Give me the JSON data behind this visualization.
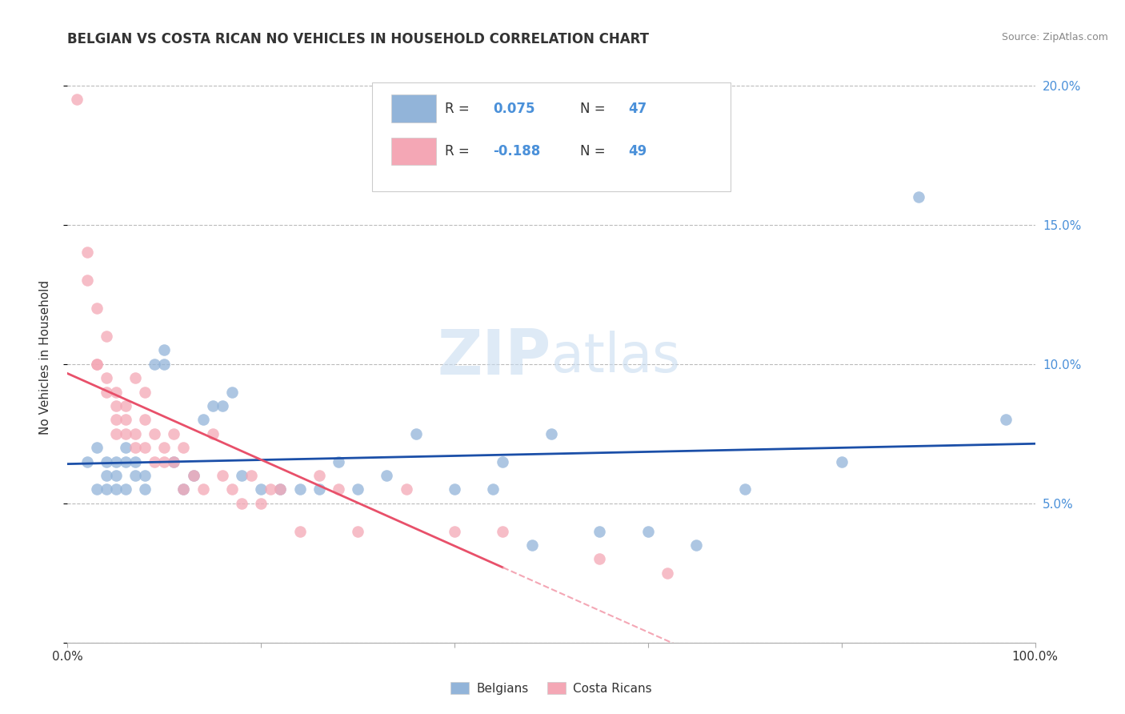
{
  "title": "BELGIAN VS COSTA RICAN NO VEHICLES IN HOUSEHOLD CORRELATION CHART",
  "source": "Source: ZipAtlas.com",
  "ylabel": "No Vehicles in Household",
  "xlim": [
    0,
    1.0
  ],
  "ylim": [
    0,
    0.21
  ],
  "yticks": [
    0.0,
    0.05,
    0.1,
    0.15,
    0.2
  ],
  "ytick_labels": [
    "",
    "5.0%",
    "10.0%",
    "15.0%",
    "20.0%"
  ],
  "legend_r_belgian": "R =  0.075",
  "legend_n_belgian": "N = 47",
  "legend_r_costarican": "R = -0.188",
  "legend_n_costarican": "N = 49",
  "belgian_color": "#92B4D9",
  "costarican_color": "#F4A7B5",
  "belgian_line_color": "#1B4FA8",
  "costarican_line_color": "#E8506A",
  "costarican_dash_color": "#F4A7B5",
  "watermark_zip": "ZIP",
  "watermark_atlas": "atlas",
  "belgian_x": [
    0.02,
    0.03,
    0.03,
    0.04,
    0.04,
    0.04,
    0.05,
    0.05,
    0.05,
    0.06,
    0.06,
    0.06,
    0.07,
    0.07,
    0.08,
    0.08,
    0.09,
    0.1,
    0.1,
    0.11,
    0.12,
    0.13,
    0.14,
    0.15,
    0.16,
    0.17,
    0.18,
    0.2,
    0.22,
    0.24,
    0.26,
    0.28,
    0.3,
    0.33,
    0.36,
    0.4,
    0.44,
    0.45,
    0.48,
    0.5,
    0.55,
    0.6,
    0.65,
    0.7,
    0.8,
    0.88,
    0.97
  ],
  "belgian_y": [
    0.065,
    0.055,
    0.07,
    0.06,
    0.065,
    0.055,
    0.065,
    0.06,
    0.055,
    0.07,
    0.065,
    0.055,
    0.06,
    0.065,
    0.055,
    0.06,
    0.1,
    0.105,
    0.1,
    0.065,
    0.055,
    0.06,
    0.08,
    0.085,
    0.085,
    0.09,
    0.06,
    0.055,
    0.055,
    0.055,
    0.055,
    0.065,
    0.055,
    0.06,
    0.075,
    0.055,
    0.055,
    0.065,
    0.035,
    0.075,
    0.04,
    0.04,
    0.035,
    0.055,
    0.065,
    0.16,
    0.08
  ],
  "costarican_x": [
    0.01,
    0.02,
    0.02,
    0.03,
    0.03,
    0.03,
    0.04,
    0.04,
    0.04,
    0.05,
    0.05,
    0.05,
    0.05,
    0.06,
    0.06,
    0.06,
    0.07,
    0.07,
    0.07,
    0.08,
    0.08,
    0.08,
    0.09,
    0.09,
    0.1,
    0.1,
    0.11,
    0.11,
    0.12,
    0.12,
    0.13,
    0.14,
    0.15,
    0.16,
    0.17,
    0.18,
    0.19,
    0.2,
    0.21,
    0.22,
    0.24,
    0.26,
    0.28,
    0.3,
    0.35,
    0.4,
    0.45,
    0.55,
    0.62
  ],
  "costarican_y": [
    0.195,
    0.14,
    0.13,
    0.12,
    0.1,
    0.1,
    0.11,
    0.095,
    0.09,
    0.09,
    0.085,
    0.08,
    0.075,
    0.085,
    0.08,
    0.075,
    0.095,
    0.075,
    0.07,
    0.09,
    0.08,
    0.07,
    0.075,
    0.065,
    0.07,
    0.065,
    0.075,
    0.065,
    0.07,
    0.055,
    0.06,
    0.055,
    0.075,
    0.06,
    0.055,
    0.05,
    0.06,
    0.05,
    0.055,
    0.055,
    0.04,
    0.06,
    0.055,
    0.04,
    0.055,
    0.04,
    0.04,
    0.03,
    0.025
  ],
  "background_color": "#FFFFFF",
  "grid_color": "#BBBBBB",
  "label_color_blue": "#4A90D9",
  "text_color": "#333333"
}
